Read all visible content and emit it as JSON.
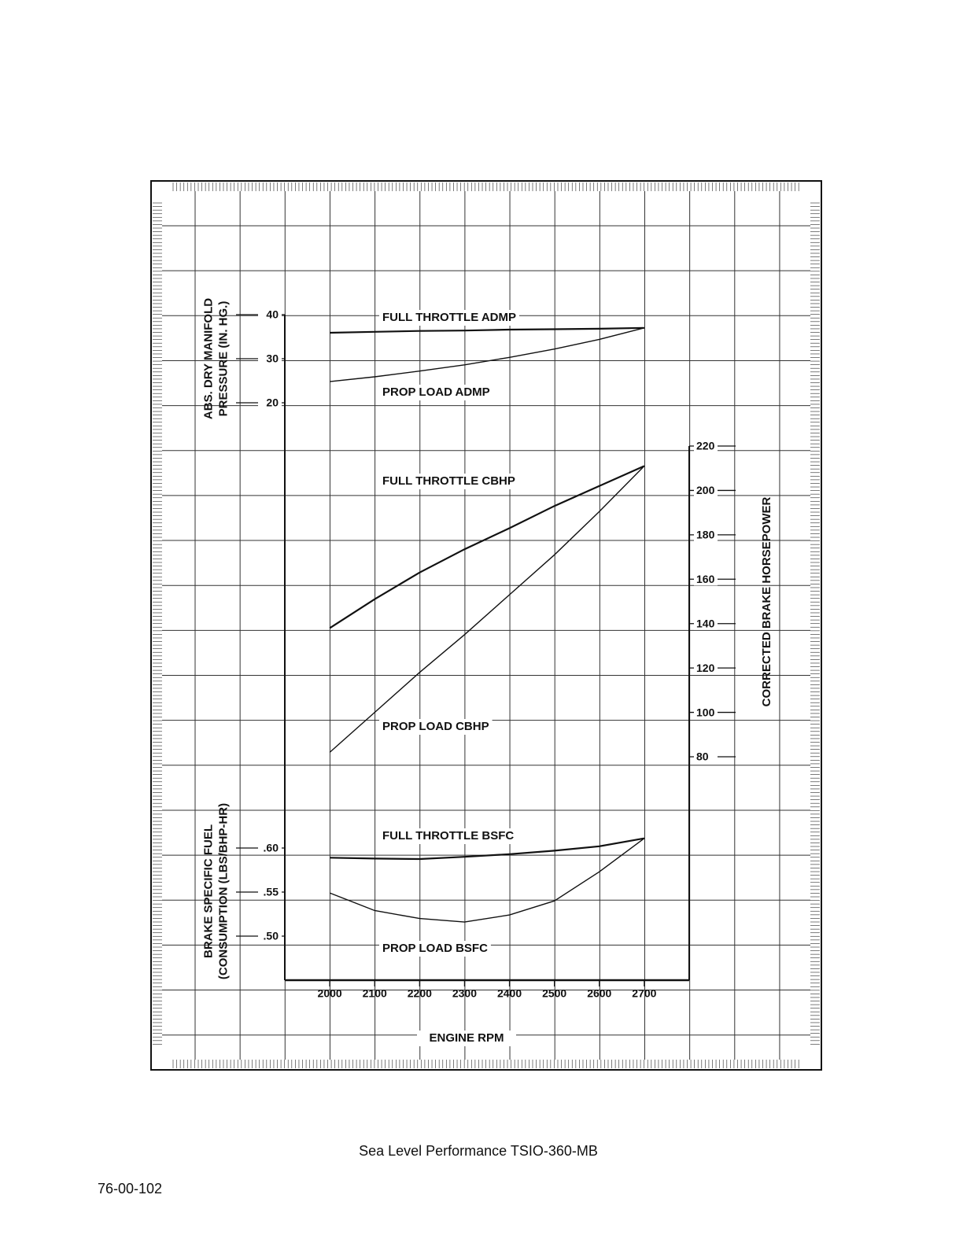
{
  "chart_data": [
    {
      "type": "line",
      "ylabel": [
        "ABS. DRY MANIFOLD",
        "PRESSURE (IN. HG.)"
      ],
      "y_axis_side": "left",
      "x": [
        2000,
        2100,
        2200,
        2300,
        2400,
        2500,
        2600,
        2700
      ],
      "xlim": [
        1900,
        2800
      ],
      "ylim": [
        20,
        40
      ],
      "yticks": [
        20,
        30,
        40
      ],
      "series": [
        {
          "name": "FULL THROTTLE ADMP",
          "color": "#111111",
          "values": [
            35.9,
            36.1,
            36.3,
            36.4,
            36.6,
            36.7,
            36.8,
            37.0
          ]
        },
        {
          "name": "PROP LOAD ADMP",
          "color": "#111111",
          "values": [
            24.8,
            25.9,
            27.2,
            28.6,
            30.3,
            32.2,
            34.4,
            37.0
          ]
        }
      ]
    },
    {
      "type": "line",
      "ylabel": [
        "CORRECTED BRAKE HORSEPOWER"
      ],
      "y_axis_side": "right",
      "x": [
        2000,
        2100,
        2200,
        2300,
        2400,
        2500,
        2600,
        2700
      ],
      "xlim": [
        1900,
        2800
      ],
      "ylim": [
        80,
        220
      ],
      "yticks": [
        80,
        100,
        120,
        140,
        160,
        180,
        200,
        220
      ],
      "series": [
        {
          "name": "FULL THROTTLE CBHP",
          "color": "#111111",
          "values": [
            138,
            151,
            163,
            173.5,
            183,
            193,
            202,
            211
          ]
        },
        {
          "name": "PROP LOAD CBHP",
          "color": "#111111",
          "values": [
            82,
            100,
            118,
            135,
            153,
            171,
            190.5,
            211
          ]
        }
      ]
    },
    {
      "type": "line",
      "ylabel": [
        "BRAKE SPECIFIC FUEL",
        "(CONSUMPTION (LBS/BHP-HR)"
      ],
      "y_axis_side": "left",
      "x": [
        2000,
        2100,
        2200,
        2300,
        2400,
        2500,
        2600,
        2700
      ],
      "xlim": [
        1900,
        2800
      ],
      "xticks": [
        2000,
        2100,
        2200,
        2300,
        2400,
        2500,
        2600,
        2700
      ],
      "xlabel": "ENGINE RPM",
      "ylim": [
        0.5,
        0.6
      ],
      "yticks": [
        {
          "value": 0.5,
          "label": ".50"
        },
        {
          "value": 0.55,
          "label": ".55"
        },
        {
          "value": 0.6,
          "label": ".60"
        }
      ],
      "series": [
        {
          "name": "FULL THROTTLE BSFC",
          "color": "#111111",
          "values": [
            0.589,
            0.588,
            0.5875,
            0.59,
            0.593,
            0.597,
            0.602,
            0.611
          ]
        },
        {
          "name": "PROP LOAD BSFC",
          "color": "#111111",
          "values": [
            0.549,
            0.529,
            0.52,
            0.516,
            0.524,
            0.54,
            0.573,
            0.611
          ]
        }
      ]
    }
  ],
  "caption": "Sea Level Performance TSIO-360-MB",
  "page_number": "76-00-102"
}
